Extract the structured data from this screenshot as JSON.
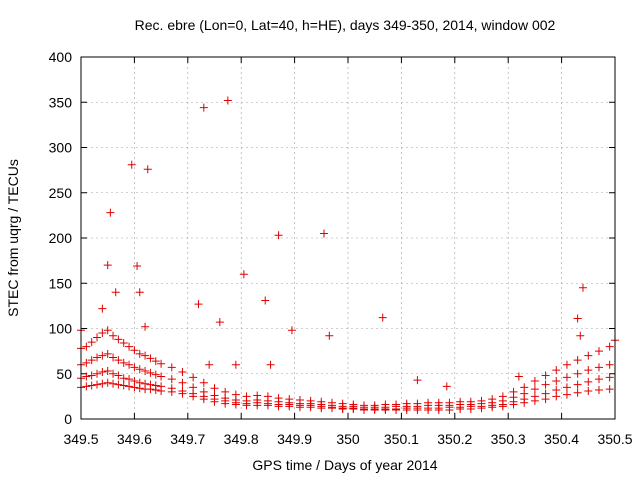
{
  "chart_data": {
    "type": "scatter",
    "title": "Rec. ebre (Lon=0, Lat=40, h=HE), days 349-350, 2014, window 002",
    "xlabel": "GPS time / Days of year 2014",
    "ylabel": "STEC from uqrg / TECUs",
    "xlim": [
      349.5,
      350.5
    ],
    "ylim": [
      0,
      400
    ],
    "xticks": [
      "349.5",
      "349.6",
      "349.7",
      "349.8",
      "349.9",
      "350",
      "350.1",
      "350.2",
      "350.3",
      "350.4",
      "350.5"
    ],
    "yticks": [
      "0",
      "50",
      "100",
      "150",
      "200",
      "250",
      "300",
      "350",
      "400"
    ],
    "grid": true,
    "marker": "plus",
    "color": "#e00000",
    "series": [
      {
        "name": "",
        "x": [
          349.5,
          349.51,
          349.52,
          349.53,
          349.54,
          349.55,
          349.56,
          349.57,
          349.58,
          349.59,
          349.6,
          349.61,
          349.62,
          349.63,
          349.64,
          349.65,
          349.67,
          349.69,
          349.71,
          349.73,
          349.75,
          349.77,
          349.79,
          349.81,
          349.83,
          349.85,
          349.87,
          349.89,
          349.91,
          349.93,
          349.95,
          349.97,
          349.99,
          350.01,
          350.03,
          350.05,
          350.07,
          350.09,
          350.11,
          350.13,
          350.15,
          350.17,
          350.19,
          350.21,
          350.23,
          350.25,
          350.27,
          350.29,
          350.31,
          350.33,
          350.35,
          350.37,
          350.39,
          350.41,
          350.43,
          350.45,
          350.47,
          350.49
        ],
        "y": [
          35,
          36,
          37,
          38,
          39,
          40,
          39,
          38,
          37,
          36,
          35,
          34,
          33,
          33,
          32,
          31,
          30,
          28,
          25,
          22,
          19,
          17,
          16,
          15,
          15,
          15,
          14,
          14,
          13,
          13,
          12,
          12,
          11,
          11,
          10,
          10,
          10,
          10,
          10,
          10,
          10,
          10,
          10,
          11,
          11,
          12,
          13,
          14,
          16,
          18,
          20,
          22,
          25,
          27,
          29,
          31,
          32,
          33
        ]
      },
      {
        "name": "",
        "x": [
          349.5,
          349.51,
          349.52,
          349.53,
          349.54,
          349.55,
          349.56,
          349.57,
          349.58,
          349.59,
          349.6,
          349.61,
          349.62,
          349.63,
          349.64,
          349.65,
          349.67,
          349.69,
          349.71,
          349.73,
          349.75,
          349.77,
          349.79,
          349.81,
          349.83,
          349.85,
          349.87,
          349.89,
          349.91,
          349.93,
          349.95,
          349.97,
          349.99,
          350.01,
          350.03,
          350.05,
          350.07,
          350.09,
          350.11,
          350.13,
          350.15,
          350.17,
          350.19,
          350.21,
          350.23,
          350.25,
          350.27,
          350.29,
          350.31,
          350.33,
          350.35,
          350.37,
          350.39,
          350.41,
          350.43,
          350.45,
          350.47,
          350.49
        ],
        "y": [
          45,
          47,
          48,
          50,
          52,
          53,
          50,
          48,
          45,
          44,
          42,
          40,
          39,
          38,
          37,
          36,
          34,
          31,
          28,
          25,
          22,
          20,
          18,
          17,
          18,
          17,
          16,
          16,
          15,
          15,
          14,
          13,
          12,
          12,
          11,
          11,
          11,
          11,
          12,
          12,
          12,
          12,
          13,
          13,
          14,
          14,
          15,
          16,
          19,
          22,
          25,
          28,
          32,
          35,
          38,
          41,
          44,
          46
        ]
      },
      {
        "name": "",
        "x": [
          349.5,
          349.51,
          349.52,
          349.53,
          349.54,
          349.55,
          349.56,
          349.57,
          349.58,
          349.59,
          349.6,
          349.61,
          349.62,
          349.63,
          349.64,
          349.65,
          349.67,
          349.69,
          349.71,
          349.73,
          349.75,
          349.77,
          349.79,
          349.81,
          349.83,
          349.85,
          349.87,
          349.89,
          349.91,
          349.93,
          349.95,
          349.97,
          349.99,
          350.01,
          350.03,
          350.05,
          350.07,
          350.09,
          350.11,
          350.13,
          350.15,
          350.17,
          350.19,
          350.21,
          350.23,
          350.25,
          350.27,
          350.29,
          350.31,
          350.33,
          350.35,
          350.37,
          350.39,
          350.41,
          350.43,
          350.45,
          350.47,
          350.49
        ],
        "y": [
          60,
          62,
          65,
          68,
          70,
          72,
          68,
          65,
          62,
          60,
          57,
          55,
          53,
          51,
          49,
          47,
          44,
          40,
          35,
          30,
          26,
          23,
          21,
          20,
          21,
          20,
          19,
          18,
          17,
          17,
          16,
          15,
          14,
          14,
          13,
          13,
          13,
          14,
          14,
          14,
          15,
          15,
          15,
          16,
          16,
          17,
          18,
          20,
          24,
          28,
          33,
          38,
          42,
          46,
          50,
          54,
          57,
          60
        ]
      },
      {
        "name": "",
        "x": [
          349.5,
          349.51,
          349.52,
          349.53,
          349.54,
          349.55,
          349.56,
          349.57,
          349.58,
          349.59,
          349.6,
          349.61,
          349.62,
          349.63,
          349.64,
          349.65,
          349.67,
          349.69,
          349.71,
          349.73,
          349.75,
          349.77,
          349.79,
          349.81,
          349.83,
          349.85,
          349.87,
          349.89,
          349.91,
          349.93,
          349.95,
          349.97,
          349.99,
          350.01,
          350.03,
          350.05,
          350.07,
          350.09,
          350.11,
          350.13,
          350.15,
          350.17,
          350.19,
          350.21,
          350.23,
          350.25,
          350.27,
          350.29,
          350.31,
          350.33,
          350.35,
          350.37,
          350.39,
          350.41,
          350.43,
          350.45,
          350.47,
          350.49
        ],
        "y": [
          78,
          80,
          85,
          90,
          95,
          98,
          92,
          88,
          84,
          80,
          76,
          72,
          70,
          67,
          64,
          61,
          57,
          52,
          46,
          40,
          34,
          30,
          27,
          25,
          26,
          25,
          23,
          22,
          21,
          20,
          19,
          18,
          17,
          16,
          15,
          15,
          16,
          16,
          17,
          17,
          18,
          18,
          18,
          19,
          19,
          20,
          22,
          25,
          30,
          35,
          42,
          48,
          54,
          60,
          65,
          70,
          75,
          80
        ]
      },
      {
        "name": "",
        "x": [
          349.5,
          349.54,
          349.55,
          349.555,
          349.565,
          349.595,
          349.605,
          349.61,
          349.62,
          349.625,
          349.72,
          349.73,
          349.74,
          349.76,
          349.775,
          349.79,
          349.805,
          349.845,
          349.855,
          349.87,
          349.895,
          349.955,
          349.965,
          350.065,
          350.13,
          350.185,
          350.32,
          350.43,
          350.435,
          350.44,
          350.5
        ],
        "y": [
          98,
          122,
          170,
          228,
          140,
          281,
          169,
          140,
          102,
          276,
          127,
          344,
          60,
          107,
          352,
          60,
          160,
          131,
          60,
          203,
          98,
          205,
          92,
          112,
          43,
          36,
          47,
          111,
          92,
          145,
          87
        ]
      }
    ]
  }
}
